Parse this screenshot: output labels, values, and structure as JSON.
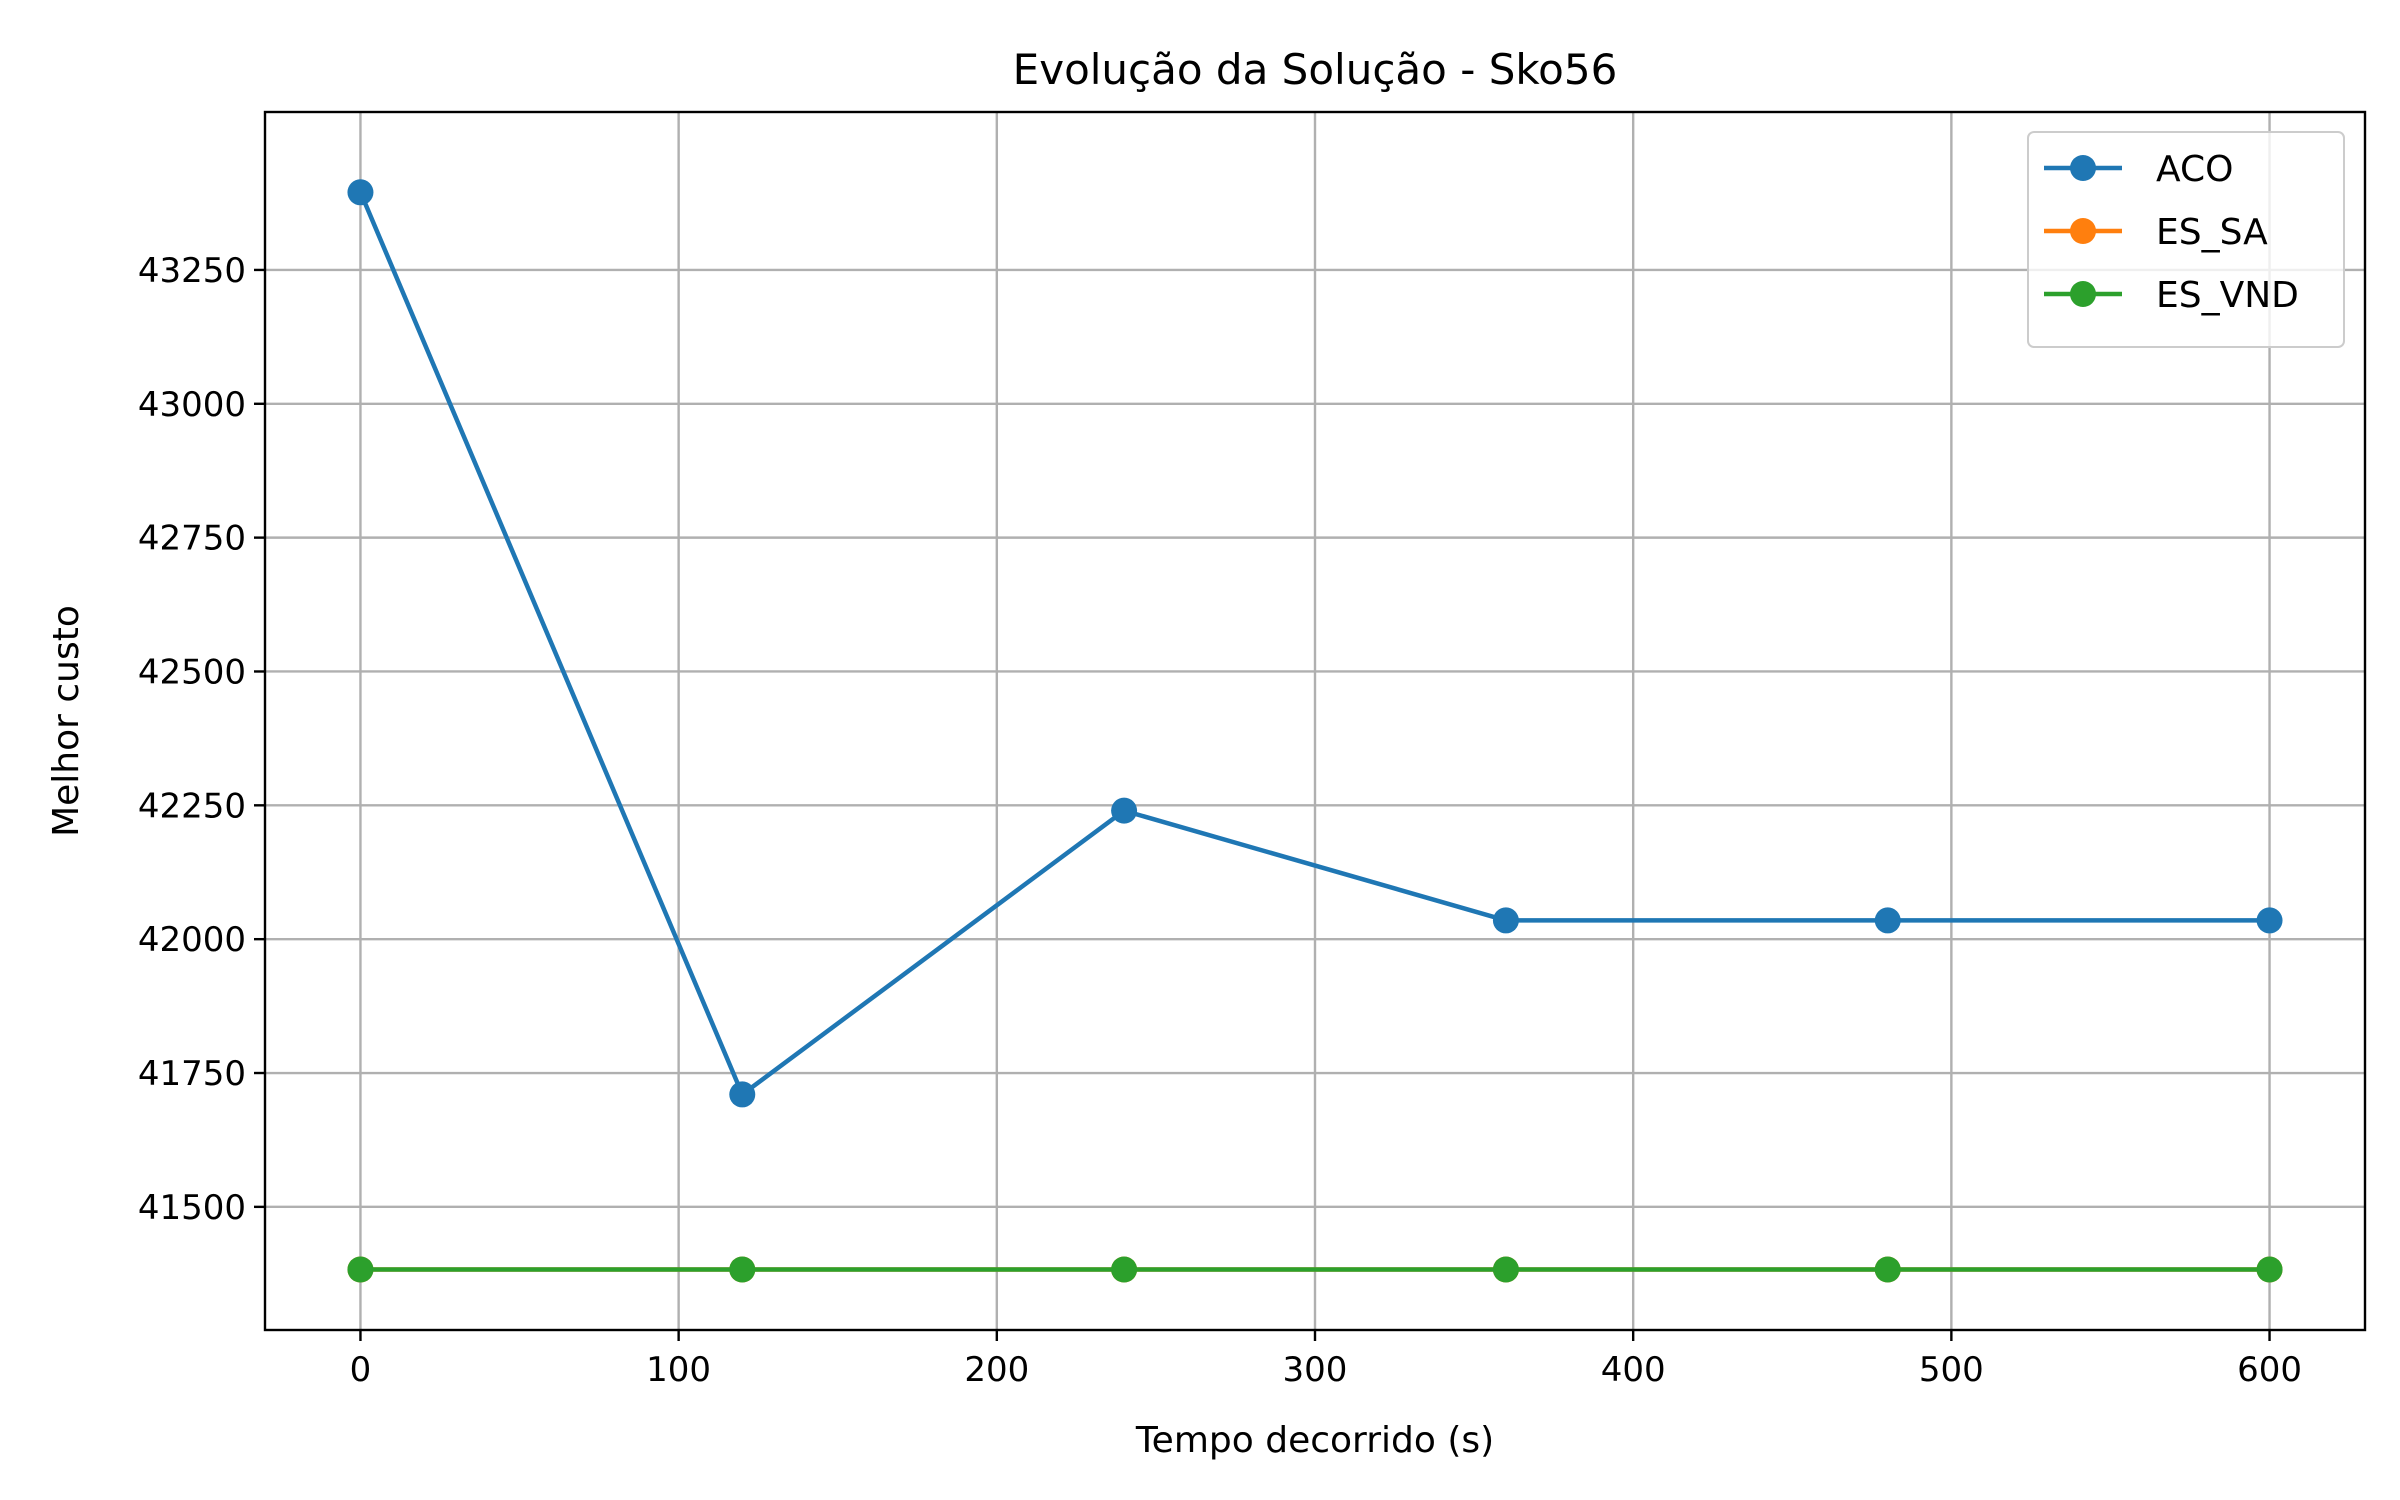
{
  "chart_data": {
    "type": "line",
    "title": "Evolução da Solução - Sko56",
    "xlabel": "Tempo decorrido (s)",
    "ylabel": "Melhor custo",
    "x": [
      0,
      120,
      240,
      360,
      480,
      600
    ],
    "xlim": [
      -30,
      630
    ],
    "ylim": [
      41270,
      43545
    ],
    "xticks": [
      0,
      100,
      200,
      300,
      400,
      500,
      600
    ],
    "yticks": [
      41500,
      41750,
      42000,
      42250,
      42500,
      42750,
      43000,
      43250
    ],
    "grid": true,
    "legend_position": "top-right",
    "series": [
      {
        "name": "ACO",
        "color": "#1f77b4",
        "values": [
          43395,
          41710,
          42240,
          42035,
          42035,
          42035
        ]
      },
      {
        "name": "ES_SA",
        "color": "#ff7f0e",
        "values": [
          41383,
          41383,
          41383,
          41383,
          41383,
          41383
        ]
      },
      {
        "name": "ES_VND",
        "color": "#2ca02c",
        "values": [
          41383,
          41383,
          41383,
          41383,
          41383,
          41383
        ]
      }
    ]
  }
}
